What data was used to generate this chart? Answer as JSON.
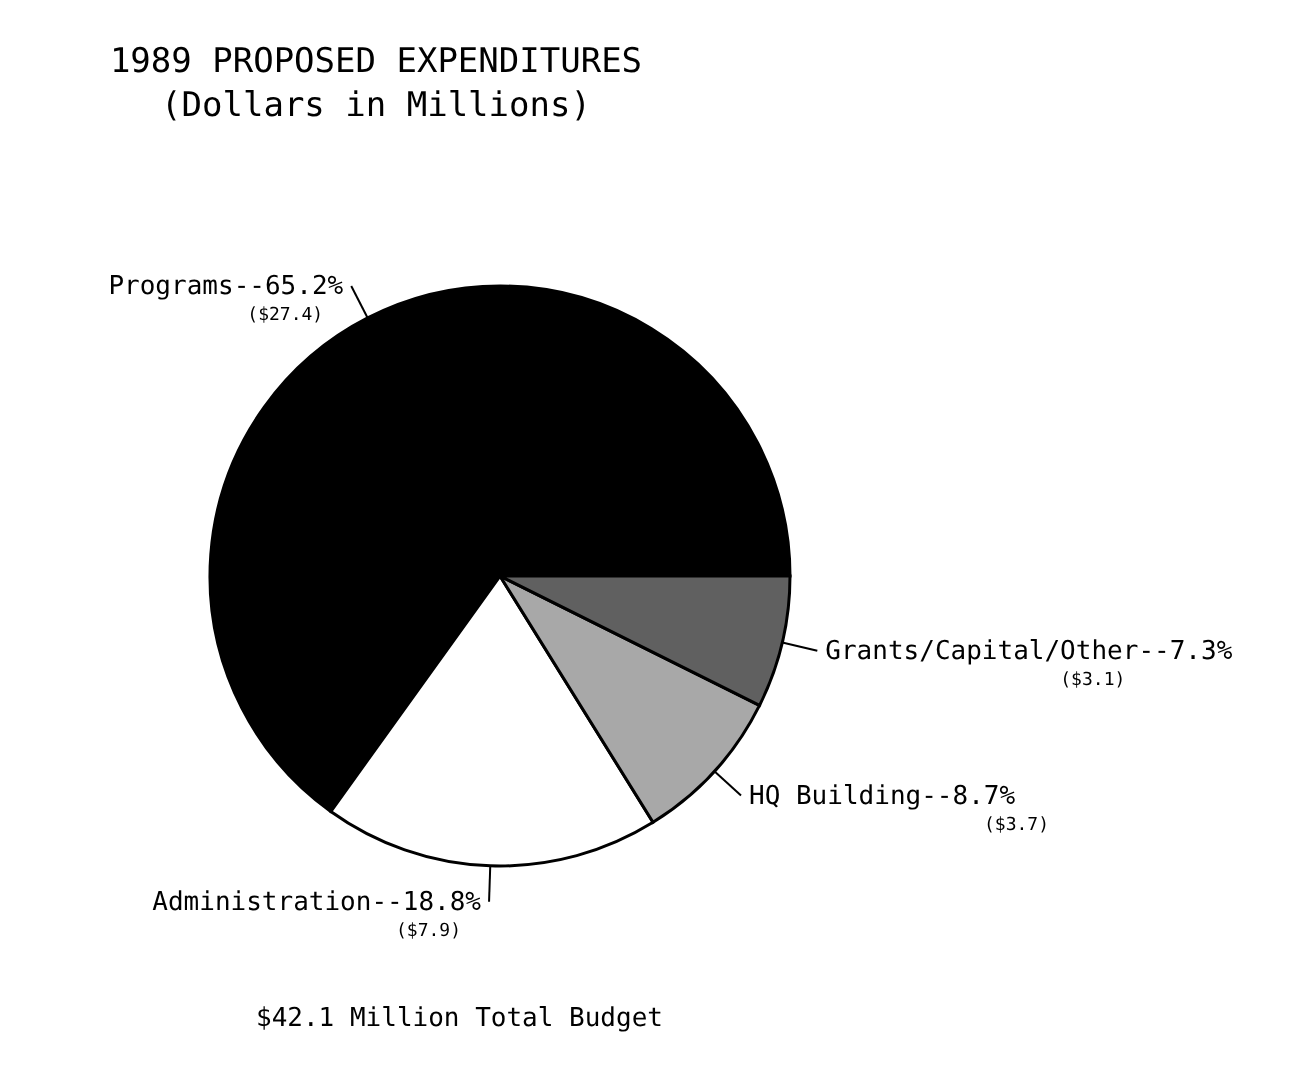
{
  "chart_data": {
    "type": "pie",
    "title": "1989 PROPOSED EXPENDITURES",
    "subtitle": "(Dollars in Millions)",
    "categories": [
      "Programs--65.2%",
      "Administration--18.8%",
      "HQ Building--8.7%",
      "Grants/Capital/Other--7.3%"
    ],
    "values": [
      27.4,
      7.9,
      3.7,
      3.1
    ],
    "value_labels": [
      "($27.4)",
      "($7.9)",
      "($3.7)",
      "($3.1)"
    ],
    "colors": [
      "#000000",
      "#ffffff",
      "#a8a8a8",
      "#606060"
    ],
    "annotations": [
      "$42.1 Million Total Budget"
    ]
  }
}
